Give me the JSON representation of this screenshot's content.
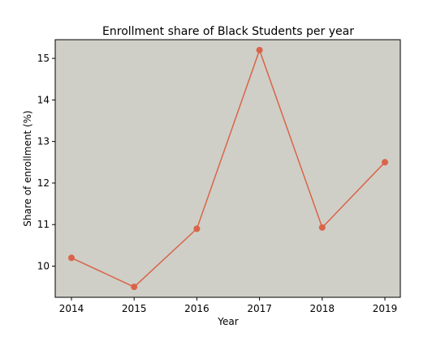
{
  "chart_data": {
    "type": "line",
    "title": "Enrollment share of Black Students per year",
    "xlabel": "Year",
    "ylabel": "Share of enrollment (%)",
    "x": [
      "2014",
      "2015",
      "2016",
      "2017",
      "2018",
      "2019"
    ],
    "series": [
      {
        "values": [
          10.2,
          9.5,
          10.9,
          15.2,
          10.93,
          12.5
        ],
        "color": "#d9644a"
      }
    ],
    "xticks": [
      "2014",
      "2015",
      "2016",
      "2017",
      "2018",
      "2019"
    ],
    "yticks": [
      10,
      11,
      12,
      13,
      14,
      15
    ],
    "ylim": [
      9.25,
      15.45
    ],
    "grid": false,
    "legend": "none",
    "plot_background": "#cfcfc7"
  }
}
